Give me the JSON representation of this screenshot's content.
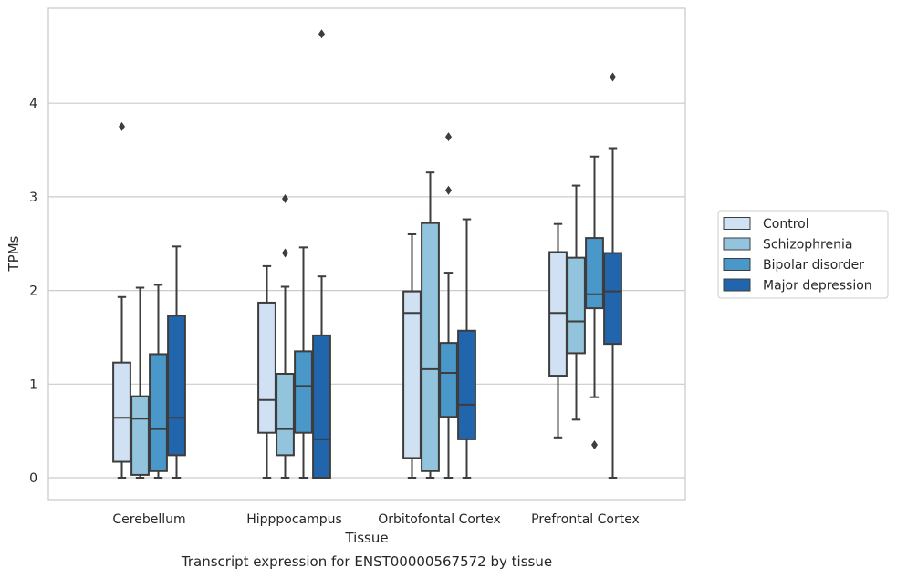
{
  "caption": "Transcript expression for ENST00000567572 by tissue",
  "chart_data": {
    "type": "box",
    "xlabel": "Tissue",
    "ylabel": "TPMs",
    "ylim": [
      -0.23,
      5.0
    ],
    "yticks": [
      "0",
      "1",
      "2",
      "3",
      "4"
    ],
    "grid": true,
    "legend_position": "right",
    "categories": [
      "Cerebellum",
      "Hipppocampus",
      "Orbitofontal Cortex",
      "Prefrontal Cortex"
    ],
    "series": [
      {
        "name": "Control",
        "color": "#cfe1f2",
        "boxes": [
          {
            "whislo": 0.0,
            "q1": 0.17,
            "med": 0.64,
            "q3": 1.23,
            "whishi": 1.93,
            "fliers": [
              3.75
            ]
          },
          {
            "whislo": 0.0,
            "q1": 0.48,
            "med": 0.83,
            "q3": 1.87,
            "whishi": 2.26,
            "fliers": []
          },
          {
            "whislo": 0.0,
            "q1": 0.21,
            "med": 1.76,
            "q3": 1.99,
            "whishi": 2.6,
            "fliers": []
          },
          {
            "whislo": 0.43,
            "q1": 1.09,
            "med": 1.76,
            "q3": 2.41,
            "whishi": 2.71,
            "fliers": []
          }
        ]
      },
      {
        "name": "Schizophrenia",
        "color": "#93c4de",
        "boxes": [
          {
            "whislo": 0.0,
            "q1": 0.03,
            "med": 0.63,
            "q3": 0.87,
            "whishi": 2.03,
            "fliers": []
          },
          {
            "whislo": 0.0,
            "q1": 0.24,
            "med": 0.52,
            "q3": 1.11,
            "whishi": 2.04,
            "fliers": [
              2.4,
              2.98
            ]
          },
          {
            "whislo": 0.0,
            "q1": 0.07,
            "med": 1.16,
            "q3": 2.72,
            "whishi": 3.26,
            "fliers": []
          },
          {
            "whislo": 0.62,
            "q1": 1.33,
            "med": 1.67,
            "q3": 2.35,
            "whishi": 3.12,
            "fliers": []
          }
        ]
      },
      {
        "name": "Bipolar disorder",
        "color": "#4a98c9",
        "boxes": [
          {
            "whislo": 0.0,
            "q1": 0.07,
            "med": 0.52,
            "q3": 1.32,
            "whishi": 2.06,
            "fliers": []
          },
          {
            "whislo": 0.0,
            "q1": 0.48,
            "med": 0.98,
            "q3": 1.35,
            "whishi": 2.46,
            "fliers": []
          },
          {
            "whislo": 0.0,
            "q1": 0.65,
            "med": 1.12,
            "q3": 1.44,
            "whishi": 2.19,
            "fliers": [
              3.07,
              3.64
            ]
          },
          {
            "whislo": 0.86,
            "q1": 1.81,
            "med": 1.96,
            "q3": 2.56,
            "whishi": 3.43,
            "fliers": [
              0.35
            ]
          }
        ]
      },
      {
        "name": "Major depression",
        "color": "#2166ac",
        "boxes": [
          {
            "whislo": 0.0,
            "q1": 0.24,
            "med": 0.64,
            "q3": 1.73,
            "whishi": 2.47,
            "fliers": []
          },
          {
            "whislo": 0.0,
            "q1": 0.0,
            "med": 0.41,
            "q3": 1.52,
            "whishi": 2.15,
            "fliers": [
              4.74
            ]
          },
          {
            "whislo": 0.0,
            "q1": 0.41,
            "med": 0.78,
            "q3": 1.57,
            "whishi": 2.76,
            "fliers": []
          },
          {
            "whislo": 0.0,
            "q1": 1.43,
            "med": 1.99,
            "q3": 2.4,
            "whishi": 3.52,
            "fliers": [
              4.28
            ]
          }
        ]
      }
    ]
  }
}
